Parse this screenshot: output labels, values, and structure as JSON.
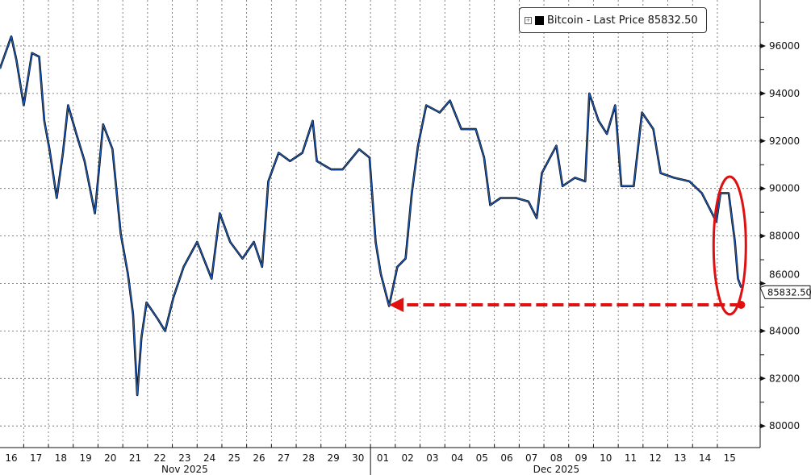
{
  "chart_data": {
    "type": "line",
    "title": "",
    "legend": {
      "label": "Bitcoin - Last Price 85832.50",
      "placement": "top-right"
    },
    "last_price_label": "85832.50",
    "last_price": 85832.5,
    "ylim": [
      79000,
      97500
    ],
    "yticks": [
      80000,
      82000,
      84000,
      86000,
      88000,
      90000,
      92000,
      94000,
      96000
    ],
    "ytick_labels": [
      "80000",
      "82000",
      "84000",
      "86000",
      "88000",
      "90000",
      "92000",
      "94000",
      "96000"
    ],
    "y_axis_side": "right",
    "grid": true,
    "xtick_labels": [
      "16",
      "17",
      "18",
      "19",
      "20",
      "21",
      "22",
      "23",
      "24",
      "25",
      "26",
      "27",
      "28",
      "29",
      "30",
      "01",
      "02",
      "03",
      "04",
      "05",
      "06",
      "07",
      "08",
      "09",
      "10",
      "11",
      "12",
      "13",
      "14",
      "15"
    ],
    "xtick_dates": [
      "2025-11-16",
      "2025-11-17",
      "2025-11-18",
      "2025-11-19",
      "2025-11-20",
      "2025-11-21",
      "2025-11-22",
      "2025-11-23",
      "2025-11-24",
      "2025-11-25",
      "2025-11-26",
      "2025-11-27",
      "2025-11-28",
      "2025-11-29",
      "2025-11-30",
      "2025-12-01",
      "2025-12-02",
      "2025-12-03",
      "2025-12-04",
      "2025-12-05",
      "2025-12-06",
      "2025-12-07",
      "2025-12-08",
      "2025-12-09",
      "2025-12-10",
      "2025-12-11",
      "2025-12-12",
      "2025-12-13",
      "2025-12-14",
      "2025-12-15"
    ],
    "month_labels": [
      {
        "label": "Nov 2025",
        "start": "2025-11-16",
        "end": "2025-11-30"
      },
      {
        "label": "Dec 2025",
        "start": "2025-12-01",
        "end": "2025-12-15"
      }
    ],
    "colors": {
      "line": "#1f5fbf",
      "line_dark": "#000000",
      "annotation": "#e01010"
    },
    "annotations": [
      {
        "type": "dashed-arrow",
        "from": "2025-12-15T23:00",
        "to": "2025-12-01T18:00",
        "y": 85100
      },
      {
        "type": "ellipse",
        "around": "2025-12-15",
        "y_range": [
          84700,
          90500
        ]
      }
    ],
    "series": [
      {
        "x": [
          "2025-11-16T01:00",
          "2025-11-16T12:00",
          "2025-11-16T17:00",
          "2025-11-17T00:00",
          "2025-11-17T08:00",
          "2025-11-17T15:00",
          "2025-11-17T20:00",
          "2025-11-18T01:00",
          "2025-11-18T08:00",
          "2025-11-18T14:00",
          "2025-11-18T19:00",
          "2025-11-19T03:00",
          "2025-11-19T11:00",
          "2025-11-19T21:00",
          "2025-11-20T05:00",
          "2025-11-20T14:00",
          "2025-11-20T22:00",
          "2025-11-21T05:00",
          "2025-11-21T10:00",
          "2025-11-21T14:00",
          "2025-11-21T18:00",
          "2025-11-21T23:00",
          "2025-11-22T10:00",
          "2025-11-22T17:00",
          "2025-11-23T01:00",
          "2025-11-23T11:00",
          "2025-11-24T00:00",
          "2025-11-24T14:00",
          "2025-11-24T22:00",
          "2025-11-25T08:00",
          "2025-11-25T20:00",
          "2025-11-26T07:00",
          "2025-11-26T15:00",
          "2025-11-26T21:00",
          "2025-11-27T07:00",
          "2025-11-27T18:00",
          "2025-11-28T06:00",
          "2025-11-28T16:00",
          "2025-11-28T20:00",
          "2025-11-29T10:00",
          "2025-11-29T21:00",
          "2025-11-30T13:00",
          "2025-11-30T23:00",
          "2025-12-01T05:00",
          "2025-12-01T10:00",
          "2025-12-01T18:00",
          "2025-12-02T02:00",
          "2025-12-02T10:00",
          "2025-12-02T16:00",
          "2025-12-02T22:00",
          "2025-12-03T06:00",
          "2025-12-03T19:00",
          "2025-12-04T05:00",
          "2025-12-04T16:00",
          "2025-12-05T06:00",
          "2025-12-05T14:00",
          "2025-12-05T20:00",
          "2025-12-06T06:00",
          "2025-12-06T21:00",
          "2025-12-07T09:00",
          "2025-12-07T17:00",
          "2025-12-07T22:00",
          "2025-12-08T12:00",
          "2025-12-08T18:00",
          "2025-12-09T06:00",
          "2025-12-09T16:00",
          "2025-12-09T20:00",
          "2025-12-10T05:00",
          "2025-12-10T13:00",
          "2025-12-10T21:00",
          "2025-12-11T03:00",
          "2025-12-11T15:00",
          "2025-12-11T23:00",
          "2025-12-12T10:00",
          "2025-12-12T17:00",
          "2025-12-13T06:00",
          "2025-12-13T21:00",
          "2025-12-14T09:00",
          "2025-12-14T23:00",
          "2025-12-15T03:00",
          "2025-12-15T11:00",
          "2025-12-15T17:00",
          "2025-12-15T20:00",
          "2025-12-15T23:00"
        ],
        "y": [
          95050,
          96400,
          95400,
          93500,
          95700,
          95550,
          92850,
          91650,
          89600,
          91500,
          93500,
          92300,
          91150,
          88950,
          92700,
          91650,
          88100,
          86400,
          84700,
          81300,
          83700,
          85200,
          84500,
          84000,
          85400,
          86700,
          87750,
          86200,
          88950,
          87750,
          87050,
          87750,
          86700,
          90300,
          91500,
          91150,
          91500,
          92850,
          91150,
          90800,
          90800,
          91650,
          91300,
          87750,
          86400,
          85050,
          86700,
          87050,
          89800,
          91800,
          93500,
          93200,
          93700,
          92500,
          92500,
          91300,
          89300,
          89600,
          89600,
          89450,
          88750,
          90650,
          91800,
          90100,
          90450,
          90300,
          94000,
          92850,
          92300,
          93500,
          90100,
          90100,
          93200,
          92500,
          90650,
          90450,
          90300,
          89800,
          88600,
          89800,
          89800,
          87750,
          86200,
          85832.5
        ]
      }
    ]
  }
}
